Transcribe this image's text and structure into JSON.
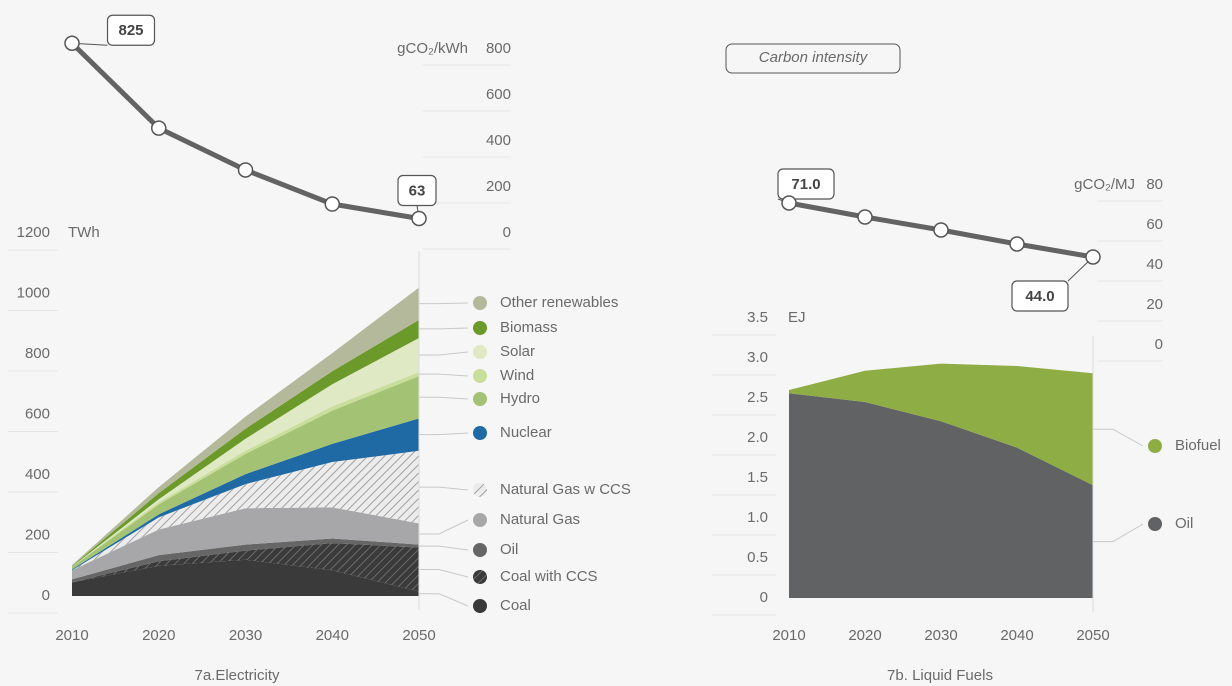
{
  "chart_data": [
    {
      "type": "line",
      "x": [
        2010,
        2020,
        2030,
        2040,
        2050
      ],
      "values": [
        825,
        456,
        274,
        126,
        63
      ],
      "value_labels": [
        "825",
        null,
        null,
        null,
        "63"
      ],
      "color": "#636363",
      "xlim": [
        2010,
        2050
      ],
      "ylim": [
        0,
        800
      ],
      "yticks": [
        0,
        200,
        400,
        600,
        800
      ],
      "y_label": "gCO₂/kWh"
    },
    {
      "type": "area",
      "stacked": true,
      "title": "7a.Electricity",
      "x": [
        2010,
        2020,
        2030,
        2040,
        2050
      ],
      "xlim": [
        2010,
        2050
      ],
      "xticks": [
        2010,
        2020,
        2030,
        2040,
        2050
      ],
      "ylim": [
        0,
        1200
      ],
      "yticks": [
        0,
        200,
        400,
        600,
        800,
        1000,
        1200
      ],
      "y_label": "TWh",
      "series": [
        {
          "name": "Coal",
          "color": "#3a3a3a",
          "values": [
            45,
            100,
            120,
            85,
            15
          ]
        },
        {
          "name": "Coal with CCS",
          "color": "#3a3a3a",
          "hatch": true,
          "values": [
            0,
            15,
            30,
            90,
            145
          ]
        },
        {
          "name": "Oil",
          "color": "#666666",
          "values": [
            10,
            20,
            20,
            15,
            10
          ]
        },
        {
          "name": "Natural Gas",
          "color": "#a7a7a9",
          "values": [
            30,
            85,
            120,
            103,
            70
          ]
        },
        {
          "name": "Natural Gas w CCS",
          "color": "#ececec",
          "hatch": true,
          "values": [
            0,
            40,
            80,
            150,
            240
          ]
        },
        {
          "name": "Nuclear",
          "color": "#1f6aa5",
          "values": [
            3,
            10,
            33,
            60,
            107
          ]
        },
        {
          "name": "Hydro",
          "color": "#a3c273",
          "values": [
            8,
            33,
            67,
            110,
            140
          ]
        },
        {
          "name": "Wind",
          "color": "#c8de9a",
          "values": [
            1,
            7,
            10,
            14,
            13
          ]
        },
        {
          "name": "Solar",
          "color": "#dfe9c3",
          "values": [
            0,
            10,
            40,
            73,
            113
          ]
        },
        {
          "name": "Biomass",
          "color": "#6b9a2a",
          "values": [
            2,
            20,
            33,
            43,
            60
          ]
        },
        {
          "name": "Other renewables",
          "color": "#b4b99b",
          "values": [
            3,
            20,
            40,
            60,
            107
          ]
        }
      ]
    },
    {
      "type": "line",
      "annotation": "Carbon intensity",
      "x": [
        2010,
        2020,
        2030,
        2040,
        2050
      ],
      "values": [
        71,
        64,
        57.5,
        50.5,
        44
      ],
      "value_labels": [
        "71.0",
        null,
        null,
        null,
        "44.0"
      ],
      "color": "#636363",
      "xlim": [
        2010,
        2050
      ],
      "ylim": [
        0,
        80
      ],
      "yticks": [
        0,
        20,
        40,
        60,
        80
      ],
      "y_label": "gCO₂/MJ"
    },
    {
      "type": "area",
      "stacked": true,
      "title": "7b. Liquid Fuels",
      "x": [
        2010,
        2020,
        2030,
        2040,
        2050
      ],
      "xlim": [
        2010,
        2050
      ],
      "xticks": [
        2010,
        2020,
        2030,
        2040,
        2050
      ],
      "ylim": [
        0,
        3.5
      ],
      "yticks": [
        0,
        0.5,
        {
          "value": 1,
          "label": "1.0"
        },
        1.5,
        {
          "value": 2,
          "label": "2.0"
        },
        2.5,
        {
          "value": 3,
          "label": "3.0"
        },
        3.5
      ],
      "y_label": "EJ",
      "series": [
        {
          "name": "Oil",
          "color": "#616263",
          "values": [
            2.56,
            2.45,
            2.21,
            1.88,
            1.41
          ]
        },
        {
          "name": "Biofuel",
          "color": "#8fad45",
          "values": [
            0.04,
            0.39,
            0.72,
            1.02,
            1.4
          ]
        }
      ]
    }
  ]
}
